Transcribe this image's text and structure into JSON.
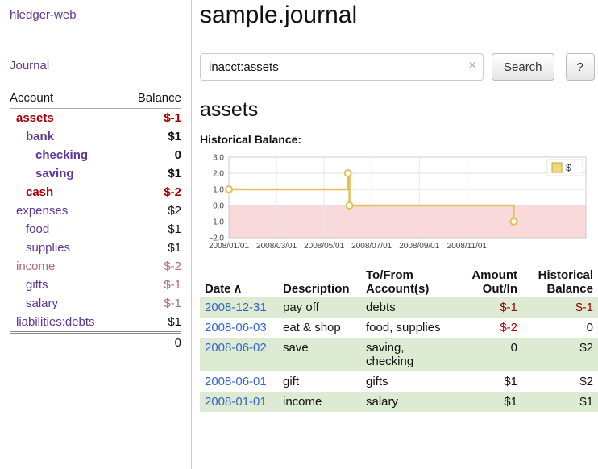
{
  "app": {
    "title": "hledger-web"
  },
  "colors": {
    "purple": "#5c3699",
    "negative": "#a40000",
    "soft-negative": "#b36b6b",
    "link-blue": "#3465cc",
    "row-green": "#dcebd1",
    "chart-line": "#e3c05a",
    "chart-neg-bg": "#f9d9d9",
    "legend-fill": "#eed77f",
    "legend-border": "#c9a227"
  },
  "sidebar": {
    "journal_link": "Journal",
    "table": {
      "headers": {
        "account": "Account",
        "balance": "Balance"
      },
      "rows": [
        {
          "name": "assets",
          "indent": 0,
          "balance": "$-1",
          "bold": true,
          "name_tone": "negative",
          "balance_tone": "negative"
        },
        {
          "name": "bank",
          "indent": 1,
          "balance": "$1",
          "bold": true,
          "name_tone": "",
          "balance_tone": ""
        },
        {
          "name": "checking",
          "indent": 2,
          "balance": "0",
          "bold": true,
          "name_tone": "",
          "balance_tone": ""
        },
        {
          "name": "saving",
          "indent": 2,
          "balance": "$1",
          "bold": true,
          "name_tone": "",
          "balance_tone": ""
        },
        {
          "name": "cash",
          "indent": 1,
          "balance": "$-2",
          "bold": true,
          "name_tone": "negative",
          "balance_tone": "negative"
        },
        {
          "name": "expenses",
          "indent": 0,
          "balance": "$2",
          "bold": false,
          "name_tone": "",
          "balance_tone": ""
        },
        {
          "name": "food",
          "indent": 1,
          "balance": "$1",
          "bold": false,
          "name_tone": "",
          "balance_tone": ""
        },
        {
          "name": "supplies",
          "indent": 1,
          "balance": "$1",
          "bold": false,
          "name_tone": "",
          "balance_tone": ""
        },
        {
          "name": "income",
          "indent": 0,
          "balance": "$-2",
          "bold": false,
          "name_tone": "soft",
          "balance_tone": "soft"
        },
        {
          "name": "gifts",
          "indent": 1,
          "balance": "$-1",
          "bold": false,
          "name_tone": "",
          "balance_tone": "soft"
        },
        {
          "name": "salary",
          "indent": 1,
          "balance": "$-1",
          "bold": false,
          "name_tone": "",
          "balance_tone": "soft"
        },
        {
          "name": "liabilities:debts",
          "indent": 0,
          "balance": "$1",
          "bold": false,
          "name_tone": "",
          "balance_tone": ""
        }
      ],
      "total": "0"
    }
  },
  "main": {
    "title": "sample.journal",
    "search": {
      "value": "inacct:assets",
      "clear_icon": "×",
      "button": "Search",
      "help_button": "?"
    },
    "heading": "assets"
  },
  "chart_data": {
    "type": "line",
    "step": true,
    "title": "Historical Balance:",
    "legend": [
      {
        "label": "$",
        "color": "#e3c05a"
      }
    ],
    "ylim": [
      -2.0,
      3.0
    ],
    "yticks": [
      "3.0",
      "2.0",
      "1.0",
      "0.0",
      "-1.0",
      "-2.0"
    ],
    "xticks": [
      "2008/01/01",
      "2008/03/01",
      "2008/05/01",
      "2008/07/01",
      "2008/09/01",
      "2008/11/01"
    ],
    "x_range_months": 15,
    "grid": true,
    "legend_position": "top-right",
    "series": [
      {
        "name": "$",
        "points": [
          [
            "2008-01-01",
            1
          ],
          [
            "2008-06-01",
            2
          ],
          [
            "2008-06-03",
            0
          ],
          [
            "2008-12-31",
            -1
          ]
        ]
      }
    ]
  },
  "register": {
    "headers": {
      "date": "Date",
      "sort_icon": "∧",
      "description": "Description",
      "accounts": "To/From Account(s)",
      "amount": "Amount Out/In",
      "balance": "Historical Balance"
    },
    "rows": [
      {
        "date": "2008-12-31",
        "description": "pay off",
        "accounts": "debts",
        "amount": "$-1",
        "balance": "$-1",
        "amount_tone": "negative",
        "balance_tone": "negative",
        "shaded": true
      },
      {
        "date": "2008-06-03",
        "description": "eat & shop",
        "accounts": "food, supplies",
        "amount": "$-2",
        "balance": "0",
        "amount_tone": "negative",
        "balance_tone": "",
        "shaded": false
      },
      {
        "date": "2008-06-02",
        "description": "save",
        "accounts": "saving, checking",
        "amount": "0",
        "balance": "$2",
        "amount_tone": "",
        "balance_tone": "",
        "shaded": true
      },
      {
        "date": "2008-06-01",
        "description": "gift",
        "accounts": "gifts",
        "amount": "$1",
        "balance": "$2",
        "amount_tone": "",
        "balance_tone": "",
        "shaded": false
      },
      {
        "date": "2008-01-01",
        "description": "income",
        "accounts": "salary",
        "amount": "$1",
        "balance": "$1",
        "amount_tone": "",
        "balance_tone": "",
        "shaded": true
      }
    ]
  }
}
